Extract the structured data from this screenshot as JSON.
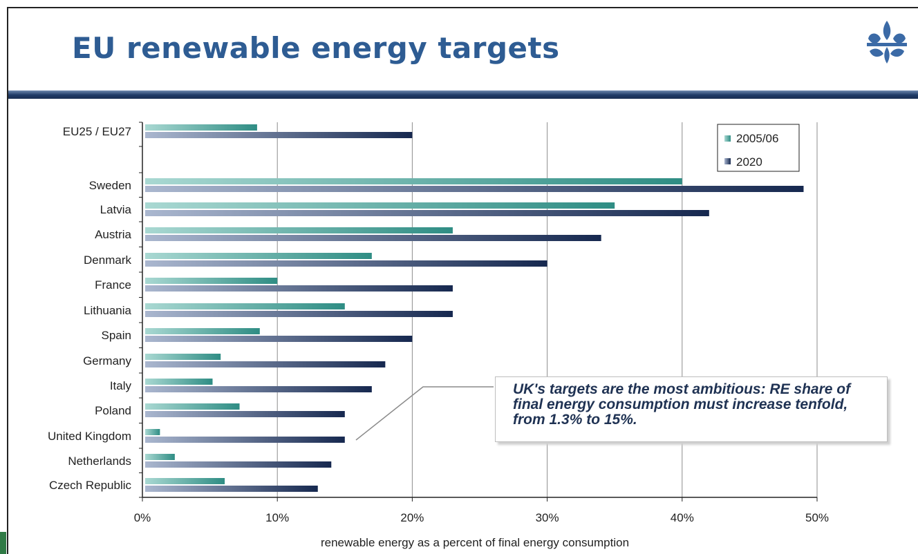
{
  "slide": {
    "title": "EU renewable energy targets"
  },
  "callout": {
    "text": "UK's targets are the most ambitious: RE share of final energy consumption must increase tenfold, from 1.3% to 15%."
  },
  "colors": {
    "title": "#2e5c93",
    "series_2005": "#4a9c94",
    "series_2020": "#1e3462"
  },
  "icons": {
    "logo": "fleur-de-lis-logo-icon"
  },
  "chart_data": {
    "type": "bar",
    "orientation": "horizontal",
    "categories": [
      "EU25 / EU27",
      "Sweden",
      "Latvia",
      "Austria",
      "Denmark",
      "France",
      "Lithuania",
      "Spain",
      "Germany",
      "Italy",
      "Poland",
      "United Kingdom",
      "Netherlands",
      "Czech Republic"
    ],
    "series": [
      {
        "name": "2005/06",
        "values": [
          8.5,
          40,
          35,
          23,
          17,
          10,
          15,
          8.7,
          5.8,
          5.2,
          7.2,
          1.3,
          2.4,
          6.1
        ]
      },
      {
        "name": "2020",
        "values": [
          20,
          49,
          42,
          34,
          30,
          23,
          23,
          20,
          18,
          17,
          15,
          15,
          14,
          13
        ]
      }
    ],
    "xlabel": "renewable energy as a percent of final energy consumption",
    "ylabel": "",
    "xlim": [
      0,
      50
    ],
    "xticks": [
      "0%",
      "10%",
      "20%",
      "30%",
      "40%",
      "50%"
    ],
    "grid": true,
    "legend_position": "top-right"
  }
}
